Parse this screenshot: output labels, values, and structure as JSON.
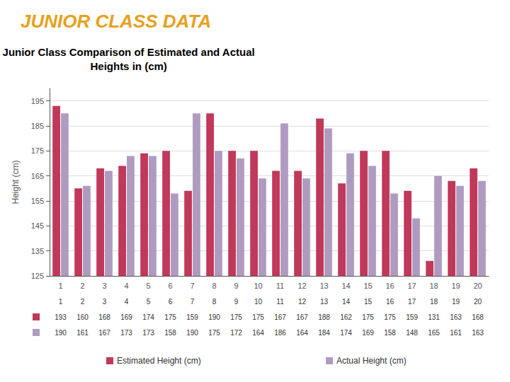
{
  "chart_data": {
    "type": "bar",
    "title": "Junior Class Comparison of Estimated and Actual\nHeights in (cm)",
    "annotations": [
      "JUNIOR CLASS DATA"
    ],
    "ylabel": "Height (cm)",
    "categories": [
      "1",
      "2",
      "3",
      "4",
      "5",
      "6",
      "7",
      "8",
      "9",
      "10",
      "11",
      "12",
      "13",
      "14",
      "15",
      "16",
      "17",
      "18",
      "19",
      "20"
    ],
    "series": [
      {
        "name": "Estimated Height (cm)",
        "color": "#C0395A",
        "values": [
          193,
          160,
          168,
          169,
          174,
          175,
          159,
          190,
          175,
          175,
          167,
          167,
          188,
          162,
          175,
          175,
          159,
          131,
          163,
          168
        ]
      },
      {
        "name": "Actual Height (cm)",
        "color": "#B09BC0",
        "values": [
          190,
          161,
          167,
          173,
          173,
          158,
          190,
          175,
          172,
          164,
          186,
          164,
          184,
          174,
          169,
          158,
          148,
          165,
          161,
          163
        ]
      }
    ],
    "ylim": [
      125,
      200
    ],
    "yticks": [
      125,
      135,
      145,
      155,
      165,
      175,
      185,
      195
    ],
    "grid": true,
    "legend": "bottom"
  }
}
